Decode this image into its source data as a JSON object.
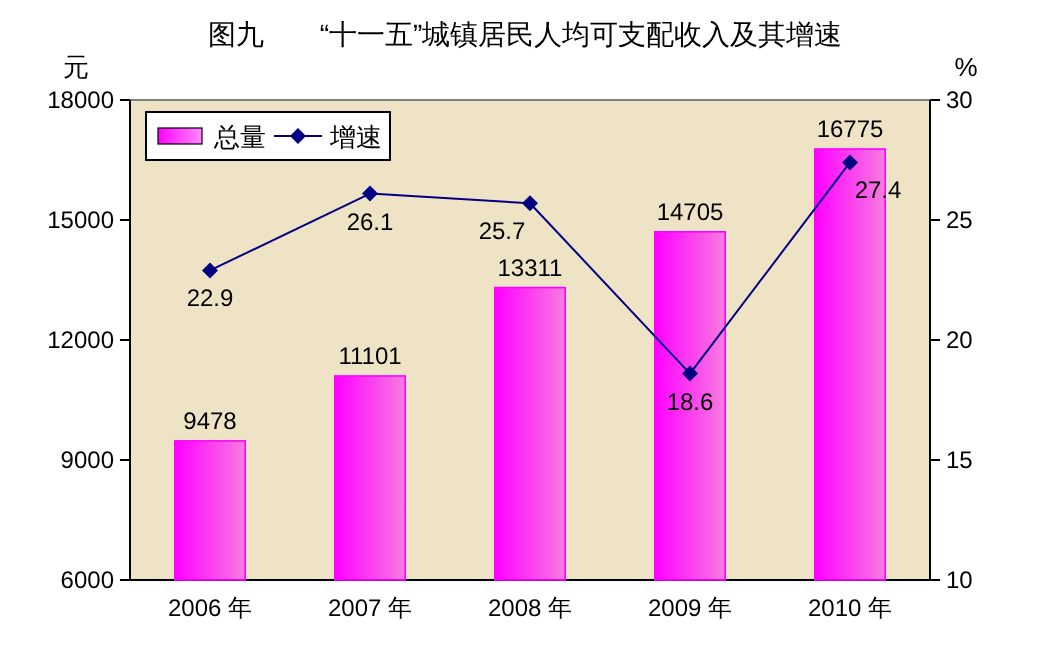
{
  "chart_data": {
    "type": "bar",
    "title": "图九　　“十一五”城镇居民人均可支配收入及其增速",
    "ylabel": "元",
    "y2label": "%",
    "categories": [
      "2006 年",
      "2007 年",
      "2008 年",
      "2009 年",
      "2010 年"
    ],
    "series": [
      {
        "name": "总量",
        "color": "#ff00ff",
        "values": [
          9478,
          11101,
          13311,
          14705,
          16775
        ]
      },
      {
        "name": "增速",
        "type": "line",
        "axis": "y2",
        "color": "#000080",
        "marker": "diamond",
        "values": [
          22.9,
          26.1,
          25.7,
          18.6,
          27.4
        ]
      }
    ],
    "ylim": [
      6000,
      18000
    ],
    "yticks": [
      6000,
      9000,
      12000,
      15000,
      18000
    ],
    "y2lim": [
      10,
      30
    ],
    "y2ticks": [
      10,
      15,
      20,
      25,
      30
    ],
    "data_labels": true,
    "legend": "top left",
    "grid": false
  }
}
